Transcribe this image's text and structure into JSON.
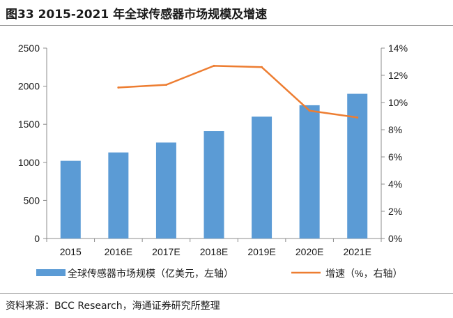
{
  "header": {
    "title": "图33 2015-2021 年全球传感器市场规模及增速"
  },
  "footer": {
    "source": "资料来源：BCC Research，海通证券研究所整理"
  },
  "chart_data": {
    "type": "bar",
    "categories": [
      "2015",
      "2016E",
      "2017E",
      "2018E",
      "2019E",
      "2020E",
      "2021E"
    ],
    "series": [
      {
        "name": "全球传感器市场规模（亿美元，左轴）",
        "type": "bar",
        "axis": "left",
        "color": "#5b9bd5",
        "values": [
          1020,
          1130,
          1260,
          1410,
          1600,
          1750,
          1900
        ]
      },
      {
        "name": "增速（%，右轴）",
        "type": "line",
        "axis": "right",
        "color": "#ed7d31",
        "values": [
          null,
          11.1,
          11.3,
          12.7,
          12.6,
          9.4,
          8.9
        ]
      }
    ],
    "y_left": {
      "min": 0,
      "max": 2500,
      "ticks": [
        "0",
        "500",
        "1000",
        "1500",
        "2000",
        "2500"
      ]
    },
    "y_right": {
      "min": 0,
      "max": 14,
      "ticks": [
        "0%",
        "2%",
        "4%",
        "6%",
        "8%",
        "10%",
        "12%",
        "14%"
      ]
    },
    "legend_position": "bottom",
    "grid": false
  }
}
